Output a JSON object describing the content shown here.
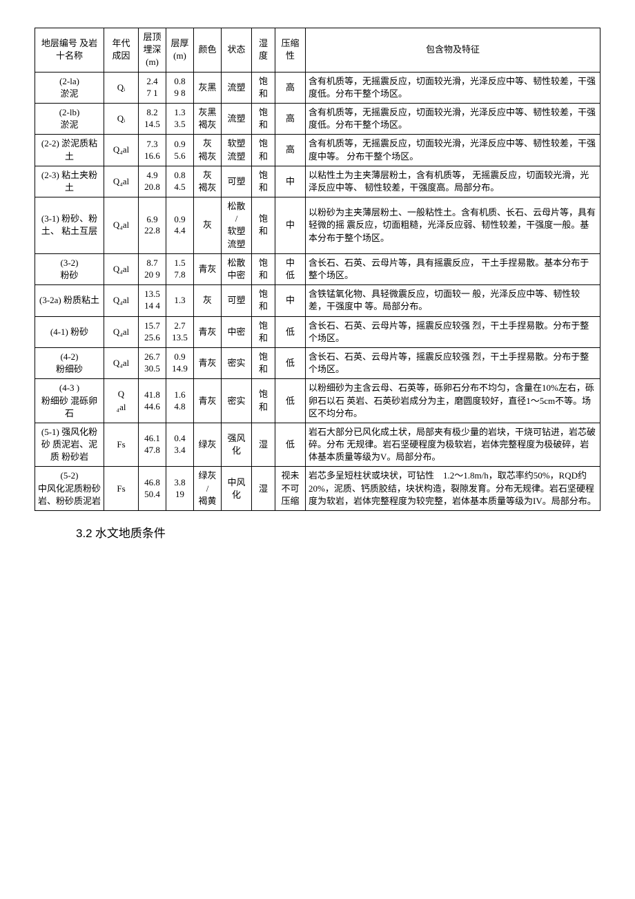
{
  "table": {
    "headers": {
      "name": "地层编号 及岩十名称",
      "era": "年代 成因",
      "depth": "层顶 埋深\n(m)",
      "thick": "层厚\n(m)",
      "color": "颜色",
      "state": "状态",
      "wet": "湿度",
      "comp": "压缩性",
      "desc": "包含物及特征"
    },
    "rows": [
      {
        "name": "(2-la)\n淤泥",
        "era": "Qᵢ",
        "depth": "2.4\n7 1",
        "thick": "0.8\n9 8",
        "color": "灰黑",
        "state": "流塑",
        "wet": "饱和",
        "comp": "高",
        "desc": "含有机质等，无摇震反应，切面较光滑，光泽反应中等、韧性较差，干强度低。分布干整个场区。"
      },
      {
        "name": "(2-lb)\n淤泥",
        "era": "Qᵢ",
        "depth": "8.2\n14.5",
        "thick": "1.3\n3.5",
        "color": "灰黑\n褐灰",
        "state": "流塑",
        "wet": "饱和",
        "comp": "高",
        "desc": "含有机质等，无摇震反应，切面较光滑，光泽反应中等、韧性较差，干强度低。分布干整个场区。"
      },
      {
        "name": "(2-2) 淤泥质粘土",
        "era": "Q₄al",
        "depth": "7.3\n16.6",
        "thick": "0.9\n5.6",
        "color": "灰\n褐灰",
        "state": "软塑\n流塑",
        "wet": "饱和",
        "comp": "高",
        "desc": "含有机质等，无摇震反应，切面较光滑，光泽反应中等、韧性较差，干强度中等。 分布干整个场区。"
      },
      {
        "name": "(2-3) 粘土夹粉土",
        "era": "Q₄al",
        "depth": "4.9\n20.8",
        "thick": "0.8\n4.5",
        "color": "灰\n褐灰",
        "state": "可塑",
        "wet": "饱和",
        "comp": "中",
        "desc": "以粘性土为主夹薄层粉土，含有机质等， 无摇震反应，切面较光滑，光泽反应中等、 韧性较差，干强度高。局部分布。"
      },
      {
        "name": "(3-1) 粉砂、粉土、 粘土互层",
        "era": "Q₄al",
        "depth": "6.9\n22.8",
        "thick": "0.9\n4.4",
        "color": "灰",
        "state": "松散\n/\n软塑\n流塑",
        "wet": "饱和",
        "comp": "中",
        "desc": "以粉砂为主夹薄层粉土、一般粘性土。含有机质、长石、云母片等，具有轻微的摇 震反应，切面粗糙，光泽反应弱、韧性较差，干强度一般。基本分布于整个场区。"
      },
      {
        "name": "(3-2)\n粉砂",
        "era": "Q₄al",
        "depth": "8.7\n20 9",
        "thick": "1.5\n7.8",
        "color": "青灰",
        "state": "松散\n中密",
        "wet": "饱和",
        "comp": "中\n低",
        "desc": "含长石、石英、云母片等，具有摇震反应， 干土手捏易散。基本分布于整个场区。"
      },
      {
        "name": "(3-2a) 粉质粘土",
        "era": "Q₄al",
        "depth": "13.5\n14 4",
        "thick": "1.3",
        "color": "灰",
        "state": "可塑",
        "wet": "饱和",
        "comp": "中",
        "desc": "含铁锰氧化物、具轻微震反应，切面较一 般，光泽反应中等、韧性较差，干强度中 等。局部分布。"
      },
      {
        "name": "(4-1) 粉砂",
        "era": "Q₄al",
        "depth": "15.7\n25.6",
        "thick": "2.7\n13.5",
        "color": "青灰",
        "state": "中密",
        "wet": "饱和",
        "comp": "低",
        "desc": "含长石、石英、云母片等，摇震反应较强 烈，干土手捏易散。分布于整个场区。"
      },
      {
        "name": "(4-2)\n粉细砂",
        "era": "Q₄al",
        "depth": "26.7\n30.5",
        "thick": "0.9\n14.9",
        "color": "青灰",
        "state": "密实",
        "wet": "饱和",
        "comp": "低",
        "desc": "含长石、石英、云母片等，摇震反应较强 烈，干土手捏易散。分布于整个场区。"
      },
      {
        "name": "(4-3 )\n粉细砂 混砾卵\n石",
        "era": "Q\n₄al",
        "depth": "41.8\n44.6",
        "thick": "1.6\n4.8",
        "color": "青灰",
        "state": "密实",
        "wet": "饱和",
        "comp": "低",
        "desc": "以粉细砂为主含云母、石英等，砾卵石分布不均匀，含量在10%左右，砾卵石以石 英岩、石英砂岩成分为主，磨圆度较好，直径1～5cm不等。场区不均分布。"
      },
      {
        "name": "(5-1) 强风化粉砂 质泥岩、泥质 粉砂岩",
        "era": "Fs",
        "depth": "46.1\n47.8",
        "thick": "0.4\n3.4",
        "color": "绿灰",
        "state": "强风 化",
        "wet": "湿",
        "comp": "低",
        "desc": "岩石大部分已风化成土状，局部夹有极少量的岩块，干烧可钻进，岩芯破碎。分布 无规律。岩石坚硬程度为极软岩，岩体完整程度为极破碎，岩体基本质量等级为V。局部分布。"
      },
      {
        "name": "(5-2)\n中风化泥质粉砂岩、粉砂质泥岩",
        "era": "Fs",
        "depth": "46.8\n50.4",
        "thick": "3.8\n19",
        "color": "绿灰\n/\n褐黄",
        "state": "中风化",
        "wet": "湿",
        "comp": "视未不可压缩",
        "desc": "岩芯多呈短柱状或块状，可钻性　1.2～1.8m/h，取芯率约50%，RQD约20%，泥质、钙质胶结，块状构造，裂隙发育。分布无规律。岩石坚硬程度为软岩，岩体完整程度为较完整，岩体基本质量等级为IV。局部分布。"
      }
    ]
  },
  "heading": {
    "number": "3.2",
    "text": " 水文地质条件"
  }
}
